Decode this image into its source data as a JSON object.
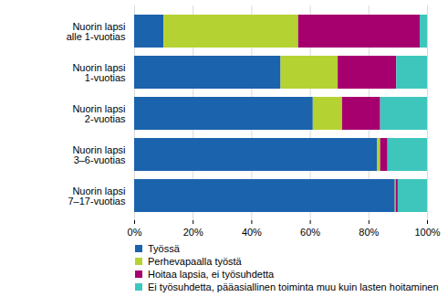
{
  "chart_data": {
    "type": "bar",
    "orientation": "horizontal",
    "stacked": true,
    "grid": true,
    "legend": "bottom",
    "categories": [
      "Nuorin lapsi\nalle 1-vuotias",
      "Nuorin lapsi\n1-vuotias",
      "Nuorin lapsi\n2-vuotias",
      "Nuorin lapsi\n3–6-vuotias",
      "Nuorin lapsi\n7–17-vuotias"
    ],
    "series": [
      {
        "name": "Työssä",
        "color": "#1b63ad",
        "values": [
          10,
          50,
          61,
          83,
          89
        ]
      },
      {
        "name": "Perhevapaalla työstä",
        "color": "#b5d233",
        "values": [
          46,
          19.5,
          10,
          1,
          0.3
        ]
      },
      {
        "name": "Hoitaa lapsia, ei työsuhdetta",
        "color": "#a6006f",
        "values": [
          41.5,
          20,
          13,
          2.5,
          0.7
        ]
      },
      {
        "name": "Ei työsuhdetta, pääasiallinen toiminta muu kuin lasten hoitaminen",
        "color": "#3ec6bd",
        "values": [
          2.5,
          10.5,
          16,
          13.5,
          10
        ]
      }
    ],
    "xlim": [
      0,
      100
    ],
    "xticks": [
      {
        "value": 0,
        "label": "0%"
      },
      {
        "value": 20,
        "label": "20%"
      },
      {
        "value": 40,
        "label": "40%"
      },
      {
        "value": 60,
        "label": "60%"
      },
      {
        "value": 80,
        "label": "80%"
      },
      {
        "value": 100,
        "label": "100%"
      }
    ]
  }
}
